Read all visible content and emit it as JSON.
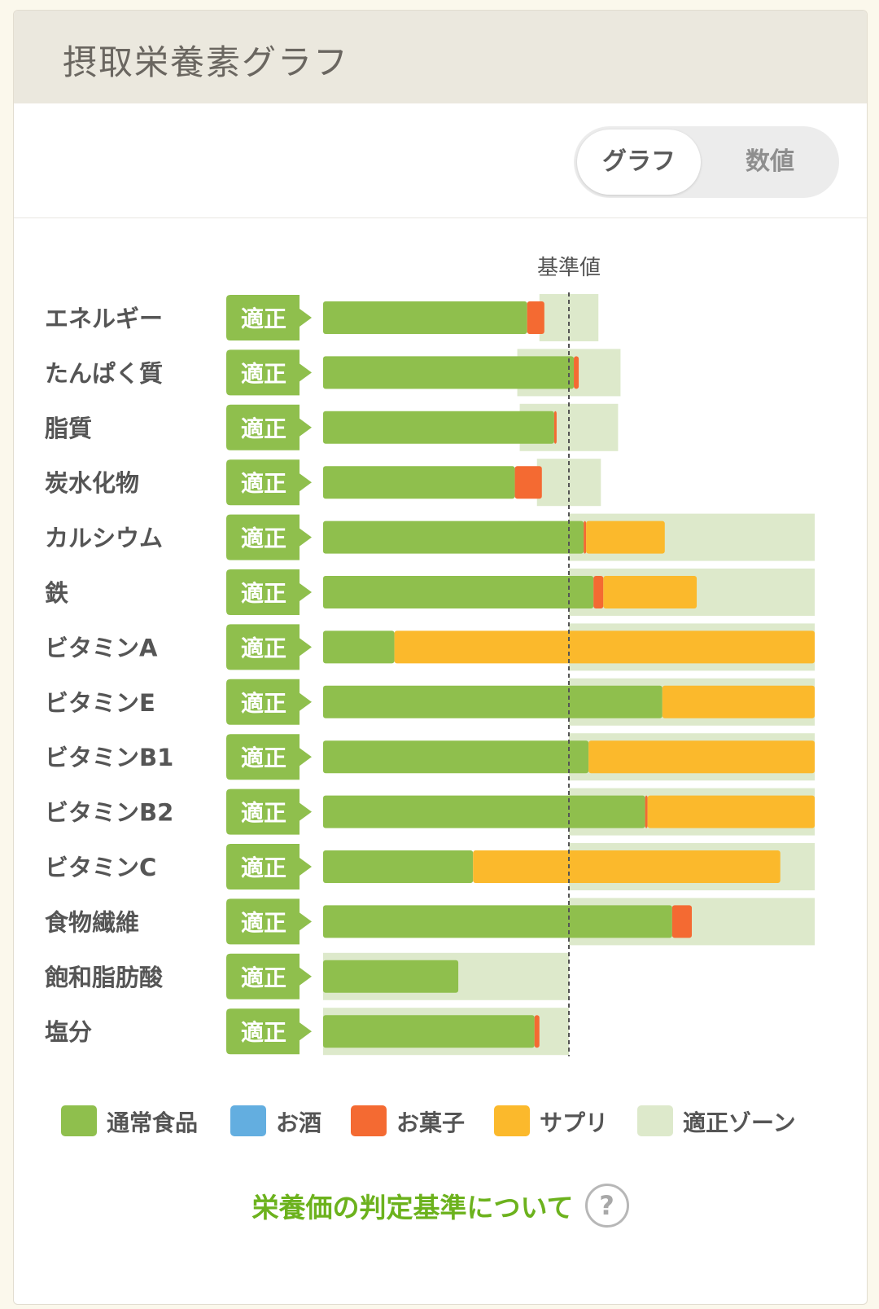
{
  "title": "摂取栄養素グラフ",
  "toggle": {
    "graph": "グラフ",
    "number": "数値"
  },
  "chart_data": {
    "type": "bar",
    "stacked": true,
    "orientation": "horizontal",
    "reference_label": "基準値",
    "reference_value": 100,
    "xlim": [
      0,
      200
    ],
    "status_label": "適正",
    "categories": [
      "エネルギー",
      "たんぱく質",
      "脂質",
      "炭水化物",
      "カルシウム",
      "鉄",
      "ビタミンA",
      "ビタミンE",
      "ビタミンB1",
      "ビタミンB2",
      "ビタミンC",
      "食物繊維",
      "飽和脂肪酸",
      "塩分"
    ],
    "series": [
      {
        "name": "通常食品",
        "color": "#8fbf4d",
        "values": [
          83,
          102,
          94,
          78,
          106,
          110,
          29,
          138,
          108,
          131,
          61,
          142,
          55,
          86
        ]
      },
      {
        "name": "お酒",
        "color": "#63aee0",
        "values": [
          0,
          0,
          0,
          0,
          0,
          0,
          0,
          0,
          0,
          0,
          0,
          0,
          0,
          0
        ]
      },
      {
        "name": "お菓子",
        "color": "#f46a32",
        "values": [
          7,
          2,
          1,
          11,
          1,
          4,
          0,
          0,
          0,
          1,
          0,
          8,
          0,
          2
        ]
      },
      {
        "name": "サプリ",
        "color": "#fbb92c",
        "values": [
          0,
          0,
          0,
          0,
          32,
          38,
          171,
          62,
          92,
          68,
          125,
          0,
          0,
          0
        ]
      }
    ],
    "zone": {
      "name": "適正ゾーン",
      "color": "#dde9cb",
      "ranges": [
        [
          88,
          112
        ],
        [
          79,
          121
        ],
        [
          80,
          120
        ],
        [
          87,
          113
        ],
        [
          100,
          200
        ],
        [
          100,
          200
        ],
        [
          100,
          200
        ],
        [
          100,
          200
        ],
        [
          100,
          200
        ],
        [
          100,
          200
        ],
        [
          100,
          200
        ],
        [
          100,
          200
        ],
        [
          0,
          100
        ],
        [
          0,
          100
        ]
      ]
    }
  },
  "legend": [
    {
      "label": "通常食品",
      "color": "#8fbf4d"
    },
    {
      "label": "お酒",
      "color": "#63aee0"
    },
    {
      "label": "お菓子",
      "color": "#f46a32"
    },
    {
      "label": "サプリ",
      "color": "#fbb92c"
    },
    {
      "label": "適正ゾーン",
      "color": "#dde9cb"
    }
  ],
  "criteria_link": "栄養価の判定基準について",
  "help_icon": "question-circle-icon"
}
